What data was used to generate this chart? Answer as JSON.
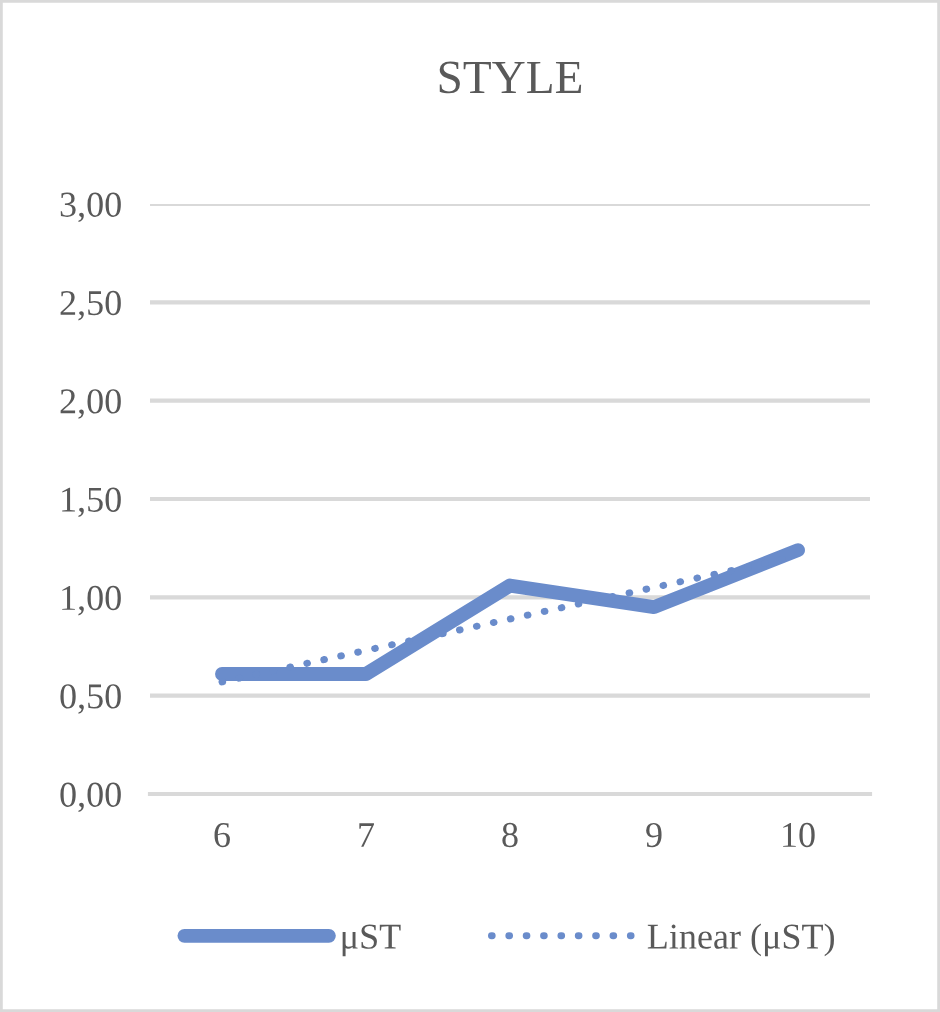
{
  "chart_data": {
    "type": "line",
    "title": "STYLE",
    "categories": [
      "6",
      "7",
      "8",
      "9",
      "10"
    ],
    "series": [
      {
        "name": "μST",
        "color": "#6a8ccb",
        "values": [
          0.61,
          0.61,
          1.06,
          0.95,
          1.24
        ],
        "line_style": "solid"
      },
      {
        "name": "Linear (μST)",
        "color": "#6a8ccb",
        "values": [
          0.57,
          0.73,
          0.89,
          1.05,
          1.21
        ],
        "line_style": "dotted"
      }
    ],
    "ylim": [
      0,
      3
    ],
    "yticks": [
      {
        "value": 0,
        "label": "0,00"
      },
      {
        "value": 0.5,
        "label": "0,50"
      },
      {
        "value": 1,
        "label": "1,00"
      },
      {
        "value": 1.5,
        "label": "1,50"
      },
      {
        "value": 2,
        "label": "2,00"
      },
      {
        "value": 2.5,
        "label": "2,50"
      },
      {
        "value": 3,
        "label": "3,00"
      }
    ],
    "grid": "y",
    "legend": "bottom"
  }
}
